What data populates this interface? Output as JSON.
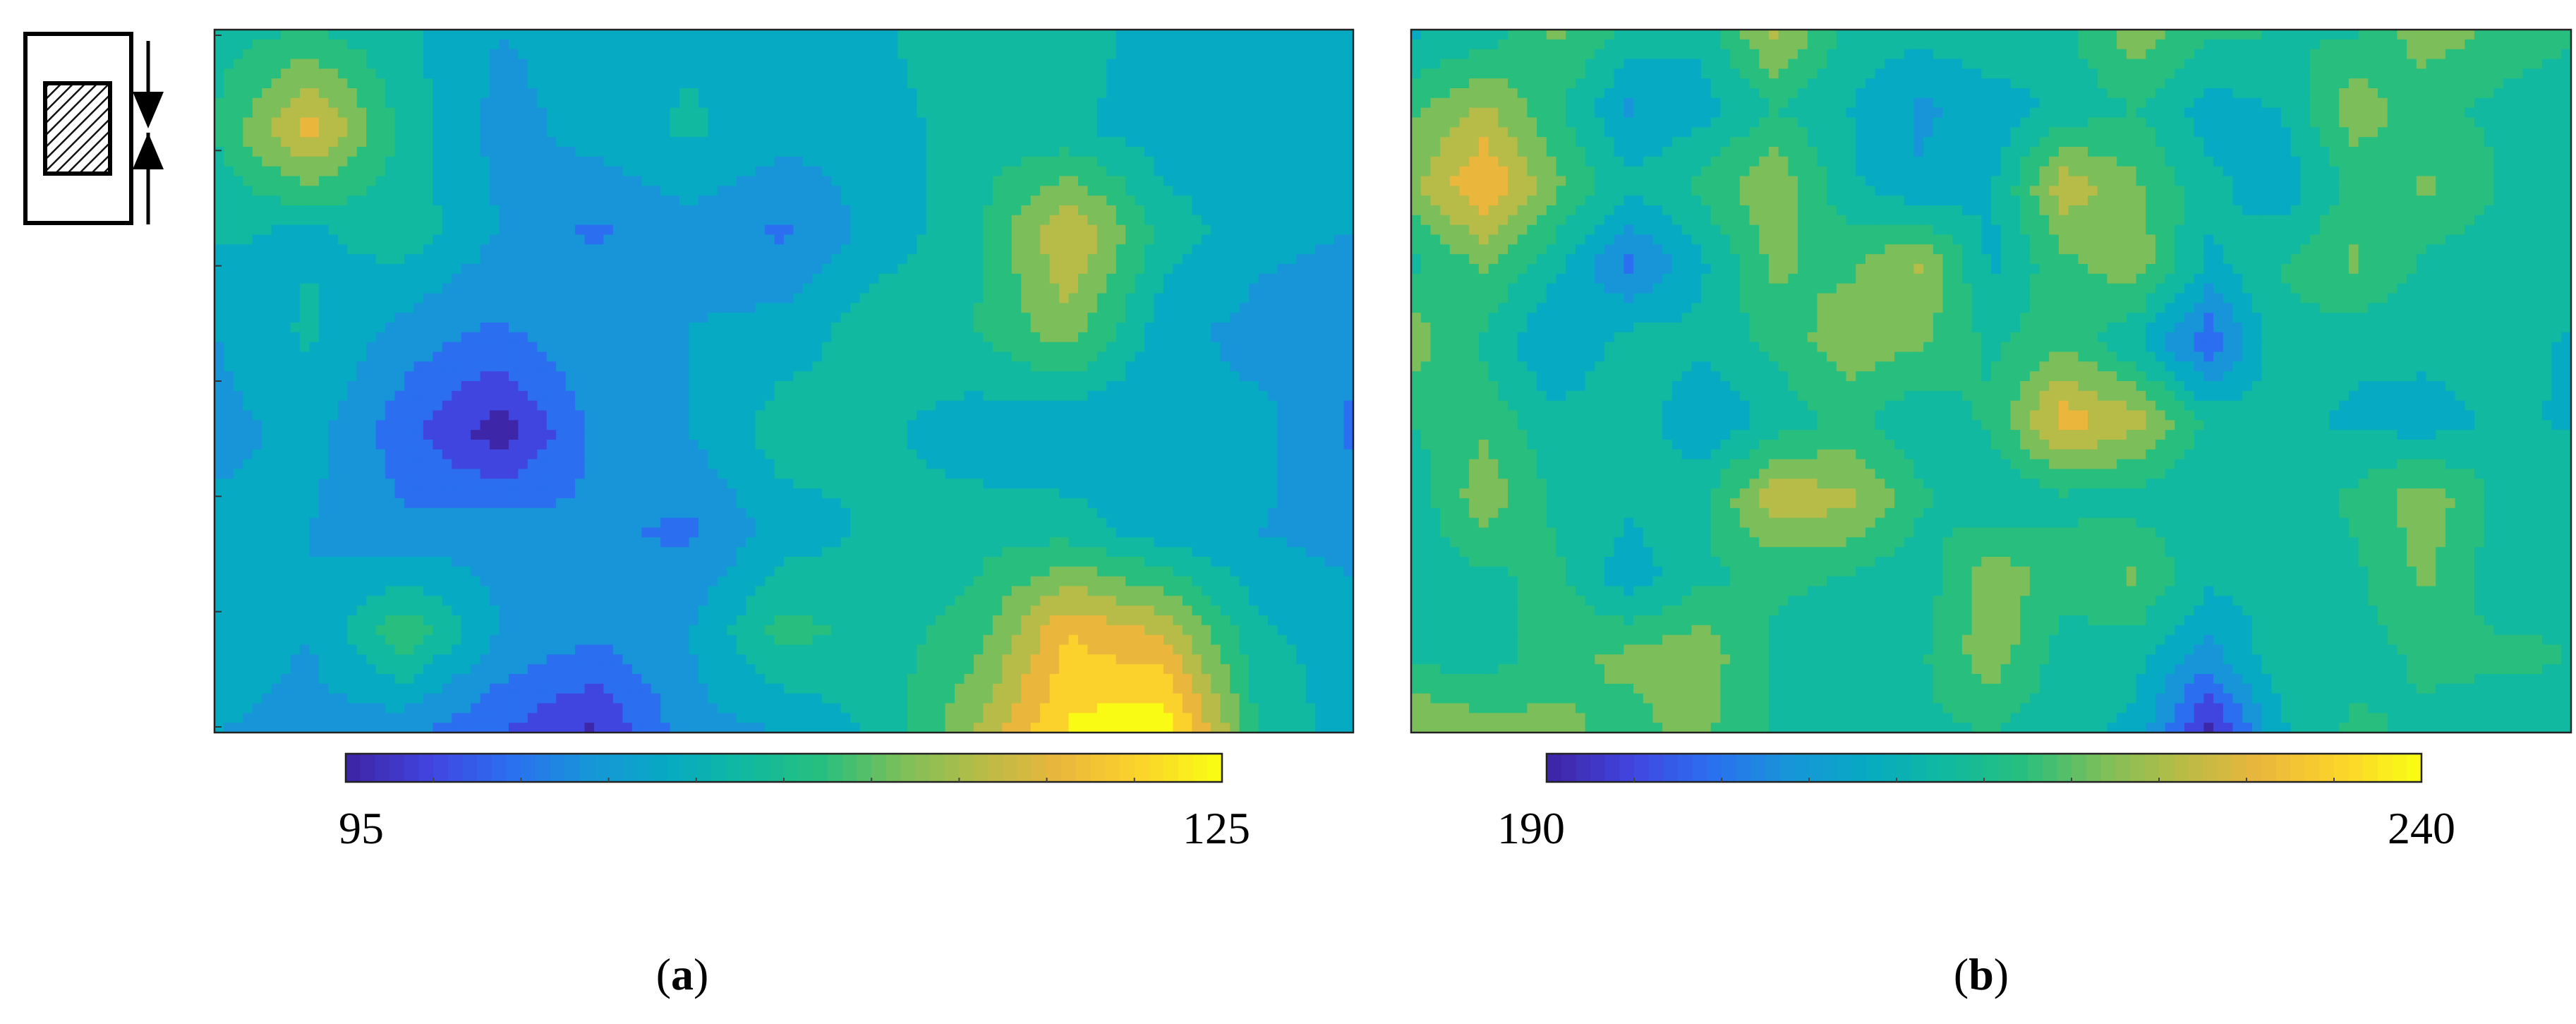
{
  "colormap": [
    "#3e26a8",
    "#4145e0",
    "#2b6ff0",
    "#1895d8",
    "#07aac3",
    "#10b9a0",
    "#28bf7e",
    "#7cbf5a",
    "#b6bc47",
    "#eab63c",
    "#fbd22c",
    "#f9fb15"
  ],
  "legend_icon": "compression-specimen-icon",
  "chart_data": [
    {
      "type": "heatmap",
      "panel_label": "a",
      "colorbar": {
        "min": 95,
        "max": 125,
        "min_label": "95",
        "max_label": "125"
      },
      "grid": {
        "rows": 8,
        "cols": 13
      },
      "values": [
        [
          109,
          110,
          108,
          105,
          106,
          107,
          106,
          107,
          110,
          109,
          106,
          107,
          106
        ],
        [
          110,
          119,
          109,
          104,
          106,
          108,
          106,
          106,
          109,
          108,
          106,
          105,
          106
        ],
        [
          108,
          107,
          109,
          105,
          102,
          104,
          102,
          106,
          109,
          118,
          109,
          106,
          105
        ],
        [
          105,
          108,
          104,
          102,
          105,
          105,
          106,
          109,
          110,
          114,
          106,
          104,
          103
        ],
        [
          104,
          106,
          101,
          96,
          103,
          105,
          109,
          108,
          106,
          105,
          105,
          106,
          102
        ],
        [
          106,
          105,
          103,
          104,
          103,
          102,
          106,
          108,
          109,
          109,
          106,
          105,
          104
        ],
        [
          107,
          105,
          112,
          105,
          103,
          105,
          111,
          109,
          111,
          120,
          117,
          108,
          106
        ],
        [
          105,
          104,
          103,
          100,
          97,
          104,
          105,
          108,
          115,
          123,
          125,
          110,
          106
        ]
      ]
    },
    {
      "type": "heatmap",
      "panel_label": "b",
      "colorbar": {
        "min": 190,
        "max": 240,
        "min_label": "190",
        "max_label": "240"
      },
      "grid": {
        "rows": 10,
        "cols": 17
      },
      "values": [
        [
          210,
          212,
          220,
          214,
          212,
          225,
          214,
          212,
          215,
          214,
          222,
          216,
          215,
          214,
          222,
          218,
          216
        ],
        [
          218,
          224,
          216,
          206,
          209,
          215,
          211,
          206,
          208,
          212,
          215,
          209,
          211,
          222,
          216,
          214,
          212
        ],
        [
          222,
          232,
          220,
          212,
          216,
          223,
          212,
          207,
          210,
          226,
          220,
          212,
          208,
          216,
          220,
          215,
          211
        ],
        [
          214,
          220,
          212,
          201,
          210,
          220,
          218,
          224,
          210,
          218,
          222,
          210,
          215,
          220,
          214,
          212,
          215
        ],
        [
          222,
          214,
          206,
          213,
          212,
          216,
          222,
          220,
          214,
          218,
          211,
          199,
          214,
          212,
          213,
          214,
          210
        ],
        [
          215,
          218,
          212,
          214,
          207,
          212,
          216,
          212,
          216,
          230,
          225,
          214,
          212,
          210,
          208,
          212,
          210
        ],
        [
          212,
          222,
          214,
          212,
          214,
          226,
          225,
          216,
          211,
          214,
          213,
          211,
          212,
          216,
          222,
          214,
          215
        ],
        [
          213,
          214,
          216,
          208,
          214,
          216,
          215,
          212,
          222,
          217,
          220,
          212,
          212,
          214,
          220,
          212,
          214
        ],
        [
          214,
          212,
          218,
          220,
          222,
          214,
          211,
          214,
          222,
          213,
          212,
          205,
          214,
          213,
          216,
          216,
          215
        ],
        [
          224,
          222,
          220,
          218,
          220,
          215,
          212,
          214,
          215,
          212,
          210,
          192,
          210,
          216,
          214,
          212,
          214
        ]
      ]
    }
  ]
}
